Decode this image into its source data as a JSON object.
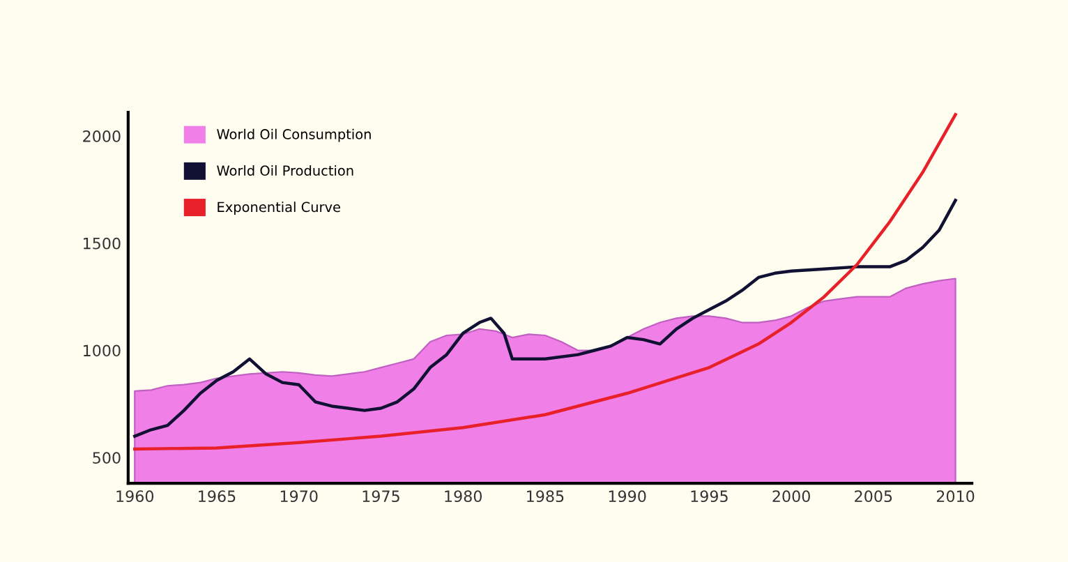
{
  "chart_data": {
    "type": "area",
    "legend": "top left",
    "grid": false,
    "xlim": [
      1959.6,
      2011
    ],
    "xticks": [
      1960,
      1965,
      1970,
      1975,
      1980,
      1985,
      1990,
      1995,
      2000,
      2005,
      2010
    ],
    "ylim": [
      380,
      2110
    ],
    "yticks": [
      500,
      1000,
      1500,
      2000
    ],
    "series": [
      {
        "name": "World Oil Consumption",
        "color": "#f07fe8",
        "x": [
          1960,
          1961,
          1962,
          1963,
          1964,
          1965,
          1966,
          1967,
          1968,
          1969,
          1970,
          1971,
          1972,
          1973,
          1974,
          1975,
          1976,
          1977,
          1978,
          1979,
          1980,
          1981,
          1982,
          1983,
          1984,
          1985,
          1986,
          1987,
          1988,
          1989,
          1990,
          1991,
          1992,
          1993,
          1994,
          1995,
          1996,
          1997,
          1998,
          1999,
          2000,
          2001,
          2002,
          2003,
          2004,
          2005,
          2006,
          2007,
          2008,
          2009,
          2010
        ],
        "values": [
          810,
          815,
          835,
          840,
          850,
          870,
          880,
          890,
          895,
          900,
          895,
          885,
          880,
          890,
          900,
          920,
          940,
          960,
          1040,
          1070,
          1075,
          1100,
          1090,
          1060,
          1075,
          1070,
          1040,
          1000,
          1000,
          1020,
          1060,
          1100,
          1130,
          1150,
          1160,
          1160,
          1150,
          1130,
          1130,
          1140,
          1160,
          1200,
          1230,
          1240,
          1250,
          1250,
          1250,
          1290,
          1310,
          1325,
          1335
        ]
      },
      {
        "name": "World Oil Production",
        "type": "line",
        "color": "#111133",
        "x": [
          1960,
          1961,
          1962,
          1963,
          1964,
          1965,
          1966,
          1967,
          1968,
          1969,
          1970,
          1971,
          1972,
          1973,
          1974,
          1975,
          1976,
          1977,
          1978,
          1979,
          1980,
          1981,
          1981.7,
          1982.5,
          1983,
          1985,
          1987,
          1988,
          1989,
          1990,
          1991,
          1992,
          1993,
          1994,
          1995,
          1996,
          1997,
          1998,
          1999,
          2000,
          2002,
          2004,
          2006,
          2007,
          2008,
          2009,
          2010
        ],
        "values": [
          600,
          630,
          650,
          720,
          800,
          860,
          900,
          960,
          890,
          850,
          840,
          760,
          740,
          730,
          720,
          730,
          760,
          820,
          920,
          980,
          1080,
          1130,
          1150,
          1080,
          960,
          960,
          980,
          1000,
          1020,
          1060,
          1050,
          1030,
          1100,
          1150,
          1190,
          1230,
          1280,
          1340,
          1360,
          1370,
          1380,
          1390,
          1390,
          1420,
          1480,
          1560,
          1700
        ]
      },
      {
        "name": "Exponential Curve",
        "type": "line",
        "color": "#e8202a",
        "x": [
          1960,
          1965,
          1970,
          1975,
          1980,
          1985,
          1990,
          1995,
          1998,
          2000,
          2002,
          2004,
          2006,
          2008,
          2010
        ],
        "values": [
          540,
          545,
          570,
          600,
          640,
          700,
          800,
          920,
          1030,
          1130,
          1250,
          1400,
          1600,
          1830,
          2100
        ]
      }
    ]
  }
}
